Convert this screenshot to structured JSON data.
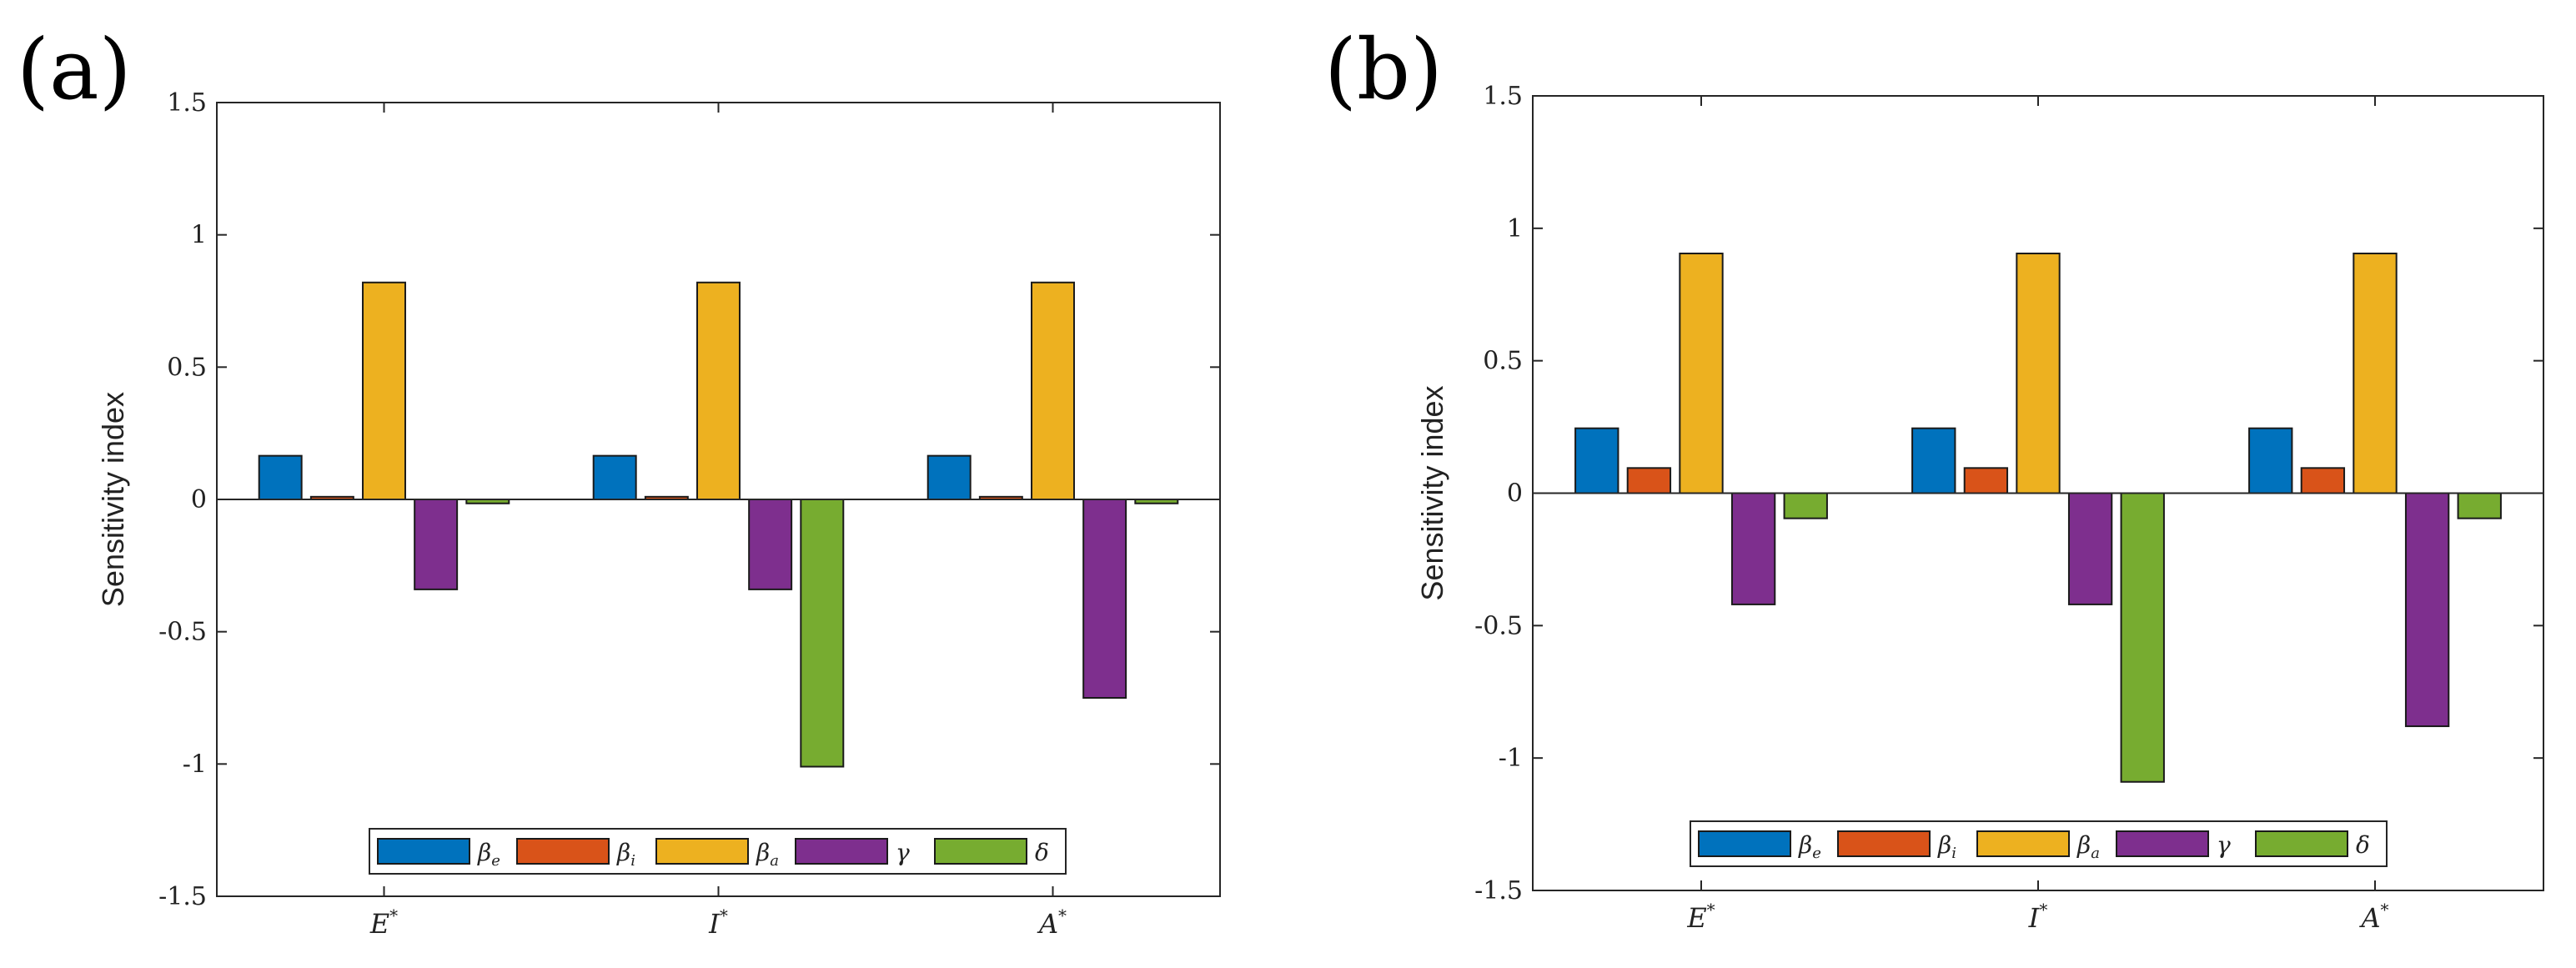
{
  "chart_data": [
    {
      "type": "bar",
      "panel_label": "(a)",
      "categories": [
        "E",
        "I",
        "A"
      ],
      "category_superscript": "*",
      "ylabel": "Sensitivity index",
      "xlabel": "",
      "ylim": [
        -1.5,
        1.5
      ],
      "yticks": [
        -1.5,
        -1,
        -0.5,
        0,
        0.5,
        1,
        1.5
      ],
      "ytick_labels": [
        "-1.5",
        "-1",
        "-0.5",
        "0",
        "0.5",
        "1",
        "1.5"
      ],
      "legend_position": "bottom-center",
      "series": [
        {
          "name": "β",
          "subscript": "e",
          "color": "#0072BD",
          "values": [
            0.165,
            0.165,
            0.165
          ]
        },
        {
          "name": "β",
          "subscript": "i",
          "color": "#D95319",
          "values": [
            0.01,
            0.01,
            0.01
          ]
        },
        {
          "name": "β",
          "subscript": "a",
          "color": "#EDB120",
          "values": [
            0.82,
            0.82,
            0.82
          ]
        },
        {
          "name": "γ",
          "subscript": "",
          "color": "#7E2F8E",
          "values": [
            -0.34,
            -0.34,
            -0.75
          ]
        },
        {
          "name": "δ",
          "subscript": "",
          "color": "#77AC30",
          "values": [
            -0.015,
            -1.01,
            -0.015
          ]
        }
      ]
    },
    {
      "type": "bar",
      "panel_label": "(b)",
      "categories": [
        "E",
        "I",
        "A"
      ],
      "category_superscript": "*",
      "ylabel": "Sensitivity index",
      "xlabel": "",
      "ylim": [
        -1.5,
        1.5
      ],
      "yticks": [
        -1.5,
        -1,
        -0.5,
        0,
        0.5,
        1,
        1.5
      ],
      "ytick_labels": [
        "-1.5",
        "-1",
        "-0.5",
        "0",
        "0.5",
        "1",
        "1.5"
      ],
      "legend_position": "bottom-center",
      "series": [
        {
          "name": "β",
          "subscript": "e",
          "color": "#0072BD",
          "values": [
            0.245,
            0.245,
            0.245
          ]
        },
        {
          "name": "β",
          "subscript": "i",
          "color": "#D95319",
          "values": [
            0.095,
            0.095,
            0.095
          ]
        },
        {
          "name": "β",
          "subscript": "a",
          "color": "#EDB120",
          "values": [
            0.905,
            0.905,
            0.905
          ]
        },
        {
          "name": "γ",
          "subscript": "",
          "color": "#7E2F8E",
          "values": [
            -0.42,
            -0.42,
            -0.88
          ]
        },
        {
          "name": "δ",
          "subscript": "",
          "color": "#77AC30",
          "values": [
            -0.095,
            -1.09,
            -0.095
          ]
        }
      ]
    }
  ]
}
